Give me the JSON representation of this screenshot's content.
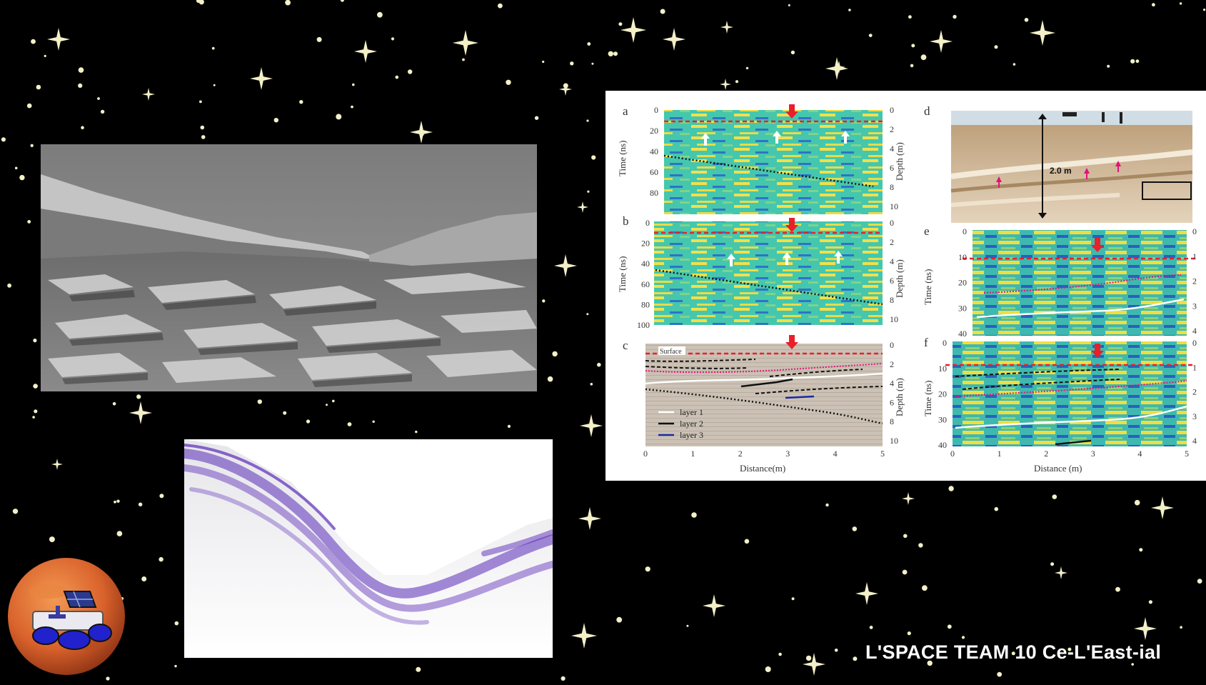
{
  "slide": {
    "team_label": "L'SPACE TEAM 10 Ce-L'East-ial"
  },
  "figure": {
    "panels": {
      "a": "a",
      "b": "b",
      "c": "c",
      "d": "d",
      "e": "e",
      "f": "f"
    },
    "labels": {
      "time_ns": "Time (ns)",
      "depth_m": "Depth (m)",
      "distance_c": "Distance(m)",
      "distance_f": "Distance (m)",
      "surface": "Surface",
      "scale_bar": "2.0 m"
    },
    "legend": [
      {
        "label": "layer 1",
        "color": "#ffffff"
      },
      {
        "label": "layer 2",
        "color": "#111111"
      },
      {
        "label": "layer 3",
        "color": "#1a2aa0"
      }
    ],
    "ticks": {
      "a_time": [
        "0",
        "20",
        "40",
        "60",
        "80"
      ],
      "a_depth": [
        "0",
        "2",
        "4",
        "6",
        "8",
        "10"
      ],
      "b_time": [
        "0",
        "20",
        "40",
        "60",
        "80",
        "100"
      ],
      "b_depth": [
        "0",
        "2",
        "4",
        "6",
        "8",
        "10"
      ],
      "c_depth": [
        "0",
        "2",
        "4",
        "6",
        "8",
        "10"
      ],
      "c_distance": [
        "0",
        "1",
        "2",
        "3",
        "4",
        "5"
      ],
      "e_time": [
        "0",
        "10",
        "20",
        "30",
        "40"
      ],
      "e_depth": [
        "0",
        "1",
        "2",
        "3",
        "4"
      ],
      "f_time": [
        "0",
        "10",
        "20",
        "30",
        "40"
      ],
      "f_depth": [
        "0",
        "1",
        "2",
        "3",
        "4"
      ],
      "f_distance": [
        "0",
        "1",
        "2",
        "3",
        "4",
        "5"
      ]
    }
  },
  "colors": {
    "background": "#000000",
    "star": "#f3f0c8",
    "radar_purple": "#5a2bb8",
    "gpr_cyan": "#3bc7b4",
    "gpr_yellow": "#f2e04a",
    "marker_red": "#e8202a",
    "marker_magenta": "#e0137a"
  },
  "icons": {
    "logo": "mars-rover-logo-icon",
    "arrow": "red-down-arrow-icon"
  }
}
